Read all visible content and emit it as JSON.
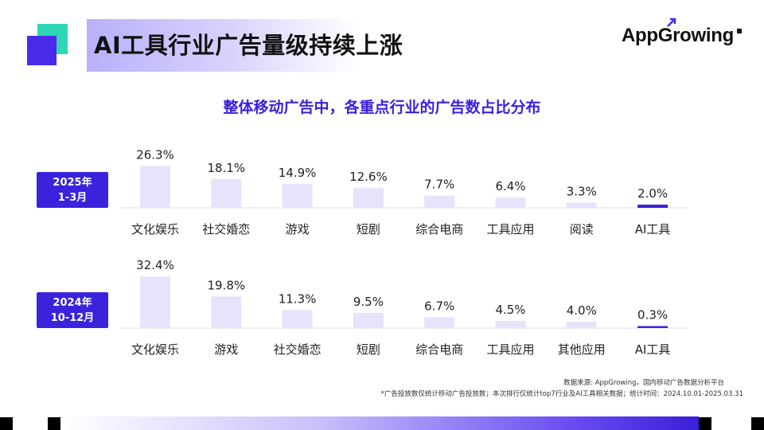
{
  "header": {
    "title": "AI工具行业广告量级持续上涨",
    "brand_left": "AppGrowing",
    "brand_right": "rowing"
  },
  "chart_title": "整体移动广告中，各重点行业的广告数占比分布",
  "colors": {
    "bar_default": "#e6e3fb",
    "bar_highlight": "#3b22dc",
    "badge": "#3b22dc",
    "title_accent": "#3b1fe0",
    "teal": "#2fd6b3"
  },
  "chart_data": [
    {
      "type": "bar",
      "period_line1": "2025年",
      "period_line2": "1-3月",
      "categories": [
        "文化娱乐",
        "社交婚恋",
        "游戏",
        "短剧",
        "综合电商",
        "工具应用",
        "阅读",
        "AI工具"
      ],
      "values": [
        26.3,
        18.1,
        14.9,
        12.6,
        7.7,
        6.4,
        3.3,
        2.0
      ],
      "value_labels": [
        "26.3%",
        "18.1%",
        "14.9%",
        "12.6%",
        "7.7%",
        "6.4%",
        "3.3%",
        "2.0%"
      ],
      "highlight": "AI工具",
      "unit": "%"
    },
    {
      "type": "bar",
      "period_line1": "2024年",
      "period_line2": "10-12月",
      "categories": [
        "文化娱乐",
        "游戏",
        "社交婚恋",
        "短剧",
        "综合电商",
        "工具应用",
        "其他应用",
        "AI工具"
      ],
      "values": [
        32.4,
        19.8,
        11.3,
        9.5,
        6.7,
        4.5,
        4.0,
        0.3
      ],
      "value_labels": [
        "32.4%",
        "19.8%",
        "11.3%",
        "9.5%",
        "6.7%",
        "4.5%",
        "4.0%",
        "0.3%"
      ],
      "highlight": "AI工具",
      "unit": "%"
    }
  ],
  "footer": {
    "source": "数据来源: AppGrowing，国内移动广告数据分析平台",
    "note": "*广告投放数仅统计移动广告投放数；本次排行仅统计top7行业及AI工具相关数据；统计时间：2024.10.01-2025.03.31"
  }
}
